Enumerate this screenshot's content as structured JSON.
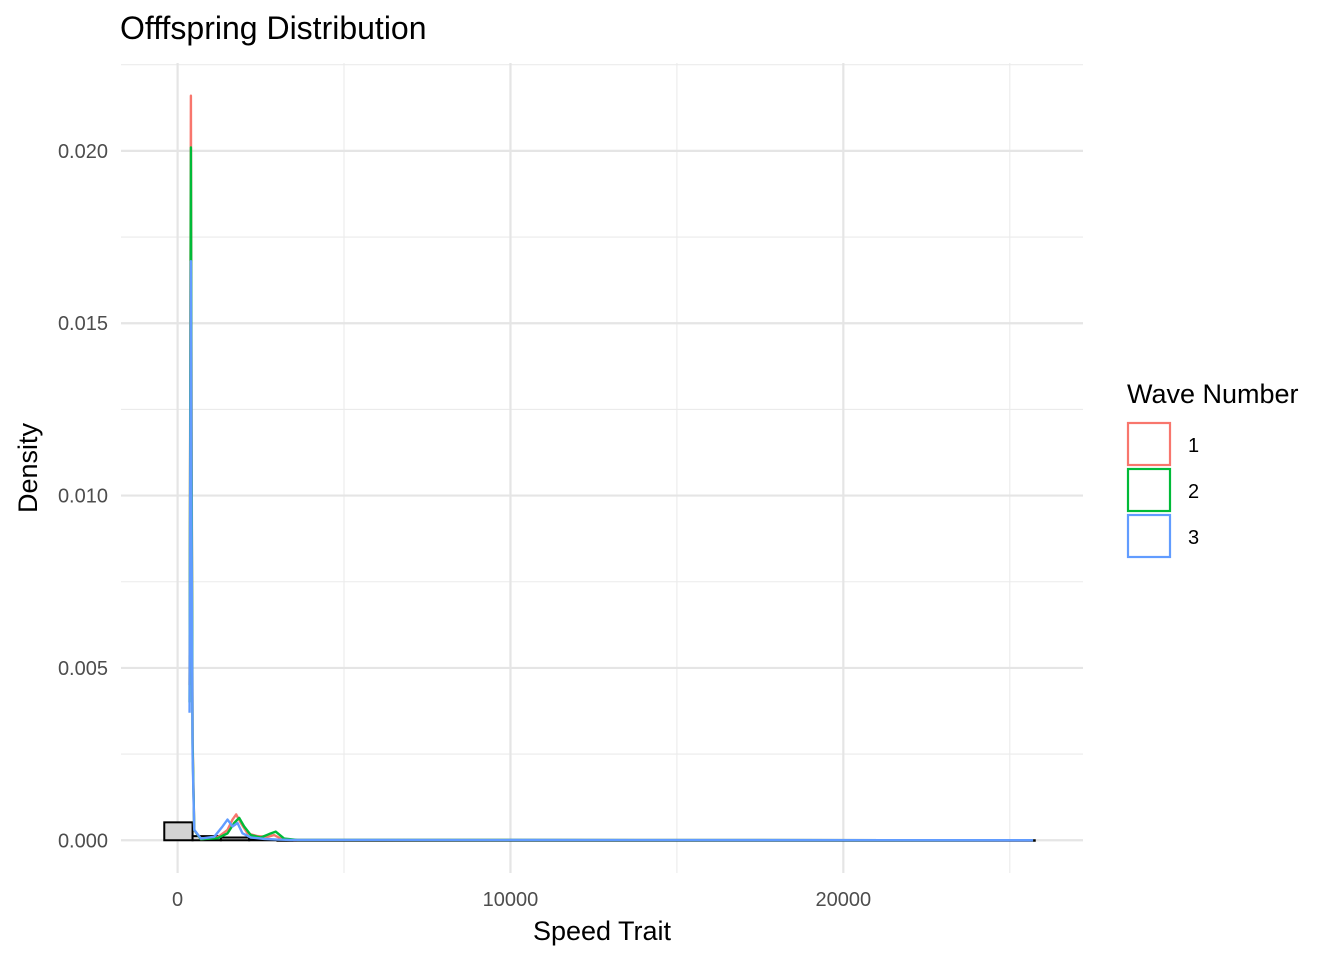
{
  "chart_data": {
    "type": "histogram+density",
    "title": "Offfspring Distribution",
    "xlabel": "Speed Trait",
    "ylabel": "Density",
    "xlim": [
      -1700,
      27200
    ],
    "ylim": [
      -0.00095,
      0.02255
    ],
    "x_ticks": [
      0,
      10000,
      20000
    ],
    "x_tick_labels": [
      "0",
      "10000",
      "20000"
    ],
    "y_ticks": [
      0.0,
      0.005,
      0.01,
      0.015,
      0.02
    ],
    "y_tick_labels": [
      "0.000",
      "0.005",
      "0.010",
      "0.015",
      "0.020"
    ],
    "grid": true,
    "histogram": {
      "fill": "#d3d3d3",
      "stroke": "#000000",
      "bins": [
        {
          "x0": -400,
          "x1": 450,
          "density": 0.00052
        },
        {
          "x0": 450,
          "x1": 1300,
          "density": 0.00012
        },
        {
          "x0": 1300,
          "x1": 2150,
          "density": 8e-05
        },
        {
          "x0": 2150,
          "x1": 3000,
          "density": 2e-05
        },
        {
          "x0": 3000,
          "x1": 25750,
          "density": 0.0
        }
      ]
    },
    "legend": {
      "title": "Wave Number",
      "position": "right"
    },
    "series": [
      {
        "name": "1",
        "color": "#f8766d",
        "points": [
          [
            360,
            0.0045
          ],
          [
            400,
            0.0216
          ],
          [
            420,
            0.012
          ],
          [
            450,
            0.003
          ],
          [
            500,
            0.0003
          ],
          [
            700,
            3e-05
          ],
          [
            1200,
            8e-05
          ],
          [
            1500,
            0.0003
          ],
          [
            1650,
            0.0006
          ],
          [
            1760,
            0.00075
          ],
          [
            1900,
            0.0005
          ],
          [
            2100,
            0.0002
          ],
          [
            2400,
            0.00012
          ],
          [
            2700,
            0.0001
          ],
          [
            2900,
            0.00015
          ],
          [
            3100,
            5e-05
          ],
          [
            3500,
            1e-05
          ],
          [
            25700,
            0.0
          ]
        ]
      },
      {
        "name": "2",
        "color": "#00ba38",
        "points": [
          [
            360,
            0.004
          ],
          [
            400,
            0.0201
          ],
          [
            420,
            0.011
          ],
          [
            450,
            0.0028
          ],
          [
            500,
            0.0003
          ],
          [
            700,
            3e-05
          ],
          [
            1200,
            6e-05
          ],
          [
            1500,
            0.0002
          ],
          [
            1700,
            0.0005
          ],
          [
            1850,
            0.00065
          ],
          [
            2000,
            0.0004
          ],
          [
            2200,
            0.00015
          ],
          [
            2500,
            8e-05
          ],
          [
            2750,
            0.00018
          ],
          [
            2950,
            0.00025
          ],
          [
            3200,
            5e-05
          ],
          [
            3600,
            1e-05
          ],
          [
            25700,
            0.0
          ]
        ]
      },
      {
        "name": "3",
        "color": "#619cff",
        "points": [
          [
            360,
            0.0037
          ],
          [
            400,
            0.0168
          ],
          [
            420,
            0.009
          ],
          [
            450,
            0.0025
          ],
          [
            500,
            0.0003
          ],
          [
            700,
            5e-05
          ],
          [
            1100,
            0.0001
          ],
          [
            1350,
            0.0004
          ],
          [
            1500,
            0.0006
          ],
          [
            1650,
            0.0004
          ],
          [
            1800,
            0.0005
          ],
          [
            1950,
            0.0002
          ],
          [
            2200,
            8e-05
          ],
          [
            2600,
            4e-05
          ],
          [
            3000,
            2e-05
          ],
          [
            3400,
            1e-05
          ],
          [
            25700,
            0.0
          ]
        ]
      }
    ]
  }
}
